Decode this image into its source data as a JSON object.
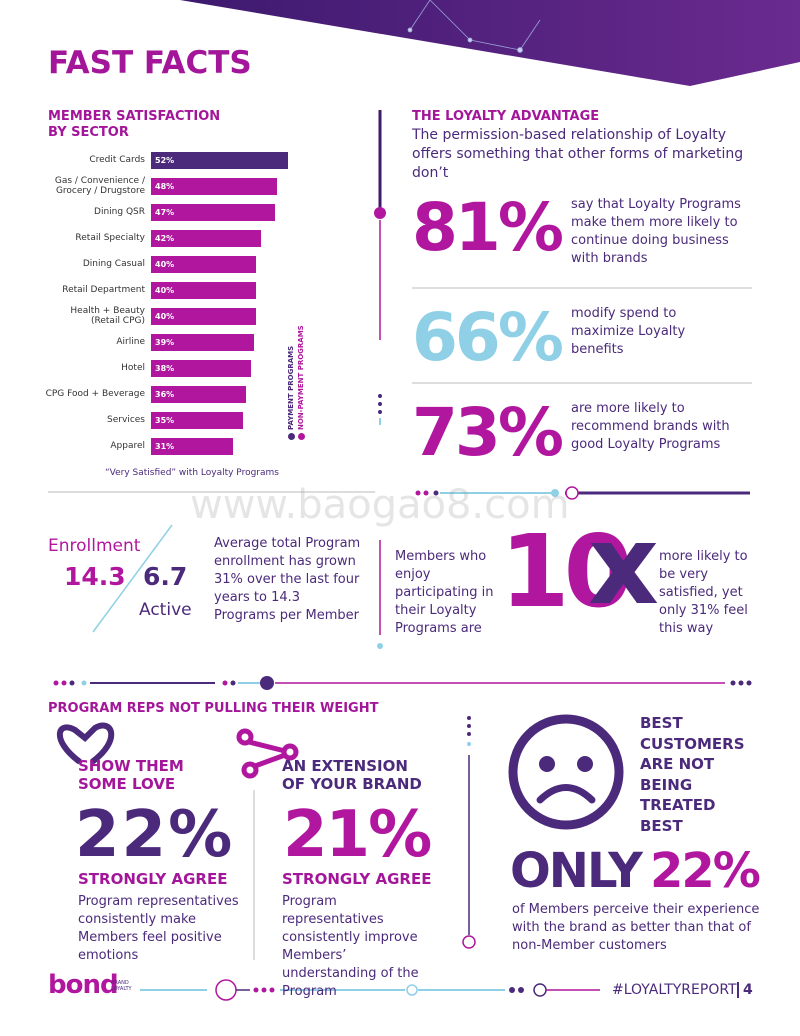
{
  "header": {
    "title": "FAST FACTS"
  },
  "chart_data": {
    "type": "bar",
    "orientation": "horizontal",
    "title": "MEMBER SATISFACTION BY SECTOR",
    "note": "“Very Satisfied” with Loyalty Programs",
    "categories": [
      "Credit Cards",
      "Gas / Convenience / Grocery / Drugstore",
      "Dining QSR",
      "Retail Specialty",
      "Dining Casual",
      "Retail Department",
      "Health + Beauty (Retail CPG)",
      "Airline",
      "Hotel",
      "CPG Food + Beverage",
      "Services",
      "Apparel"
    ],
    "series": [
      {
        "name": "PAYMENT PROGRAMS",
        "color": "#4b2a7b",
        "values": [
          52,
          null,
          null,
          null,
          null,
          null,
          null,
          null,
          null,
          null,
          null,
          null
        ],
        "value_labels": [
          "52%",
          null,
          null,
          null,
          null,
          null,
          null,
          null,
          null,
          null,
          null,
          null
        ]
      },
      {
        "name": "NON-PAYMENT PROGRAMS",
        "color": "#b1179e",
        "values": [
          null,
          48,
          47,
          42,
          40,
          40,
          40,
          39,
          38,
          36,
          35,
          31
        ],
        "value_labels": [
          null,
          "48%",
          "47%",
          "42%",
          "40%",
          "40%",
          "40%",
          "39%",
          "38%",
          "36%",
          "35%",
          "31%"
        ]
      }
    ]
  },
  "advantage": {
    "title": "THE LOYALTY ADVANTAGE",
    "intro": "The permission-based relationship of Loyalty offers something that other forms of marketing don’t",
    "stats": [
      {
        "value": "81%",
        "text": "say that Loyalty Programs make them more likely to continue doing business with brands"
      },
      {
        "value": "66%",
        "text": "modify spend to maximize Loyalty benefits"
      },
      {
        "value": "73%",
        "text": "are more likely to recommend brands with good Loyalty Programs"
      }
    ]
  },
  "watermark": "www.baogao8.com",
  "enrollment": {
    "label": "Enrollment",
    "total": "14.3",
    "active": "6.7",
    "active_label": "Active",
    "text": "Average total Program enrollment has grown 31% over the last four years to 14.3 Programs per Member"
  },
  "satisfied": {
    "left": "Members who enjoy participating in their Loyalty Programs are",
    "number": "10",
    "symbol": "x",
    "right": "more likely to be very satisfied, yet only 31% feel this way"
  },
  "reps": {
    "title": "PROGRAM REPS NOT PULLING THEIR WEIGHT",
    "cards": [
      {
        "heading": "SHOW THEM SOME LOVE",
        "value": "22%",
        "label": "STRONGLY AGREE",
        "text": "Program representatives consistently make Members feel positive emotions"
      },
      {
        "heading": "AN EXTENSION OF YOUR BRAND",
        "value": "21%",
        "label": "STRONGLY AGREE",
        "text": "Program representatives consistently improve Members’ understanding of the Program"
      }
    ],
    "best": {
      "heading": "BEST CUSTOMERS ARE NOT BEING TREATED BEST",
      "only": "ONLY",
      "value": "22%",
      "text": "of Members perceive their experience with the brand as better than that of non-Member customers"
    }
  },
  "footer": {
    "logo": "bond",
    "logo_sub": "BRAND LOYALTY",
    "hashtag": "#LOYALTYREPORT",
    "page": "4"
  }
}
